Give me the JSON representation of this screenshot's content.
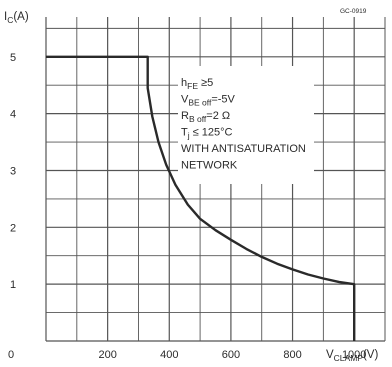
{
  "chart_data": {
    "type": "line",
    "reference": "GC-0919",
    "ylabel": "I",
    "ylabel_sub": "C",
    "ylabel_unit": "(A)",
    "xlabel": "V",
    "xlabel_sub": "CLAMP",
    "xlabel_unit": "(V)",
    "xlim": [
      0,
      1100
    ],
    "ylim": [
      0,
      5.7
    ],
    "x_ticks": [
      0,
      200,
      400,
      600,
      800,
      1000
    ],
    "y_ticks": [
      1,
      2,
      3,
      4,
      5
    ],
    "grid": true,
    "annotations": [
      {
        "main": "h",
        "sub": "FE",
        "rest": " ≥5"
      },
      {
        "main": "V",
        "sub": "BE off",
        "rest": "=-5V"
      },
      {
        "main": "R",
        "sub": "B off",
        "rest": "=2 Ω"
      },
      {
        "main": "T",
        "sub": "j",
        "rest": " ≤ 125°C"
      },
      {
        "main": "WITH ANTISATURATION",
        "sub": "",
        "rest": ""
      },
      {
        "main": "NETWORK",
        "sub": "",
        "rest": ""
      }
    ],
    "series": [
      {
        "x": [
          0,
          330,
          330,
          345,
          365,
          390,
          420,
          460,
          500,
          550,
          600,
          650,
          700,
          750,
          800,
          850,
          900,
          950,
          1000,
          1000
        ],
        "y": [
          5,
          5,
          4.45,
          3.95,
          3.5,
          3.1,
          2.75,
          2.4,
          2.15,
          1.95,
          1.78,
          1.62,
          1.48,
          1.36,
          1.26,
          1.17,
          1.1,
          1.04,
          1.0,
          0
        ]
      }
    ]
  }
}
